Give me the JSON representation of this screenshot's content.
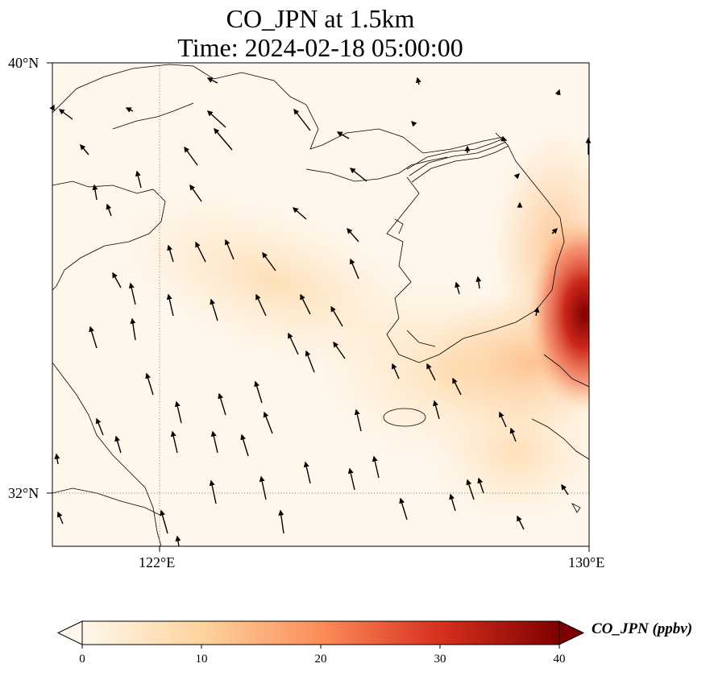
{
  "figure": {
    "title_line1": "CO_JPN at 1.5km",
    "title_line2": "Time: 2024-02-18 05:00:00"
  },
  "axes": {
    "lat_ticks": [
      "40°N",
      "32°N"
    ],
    "lon_ticks": [
      "122°E",
      "130°E"
    ],
    "gridlines": "dotted",
    "extent": {
      "lon_min": 120,
      "lon_max": 130,
      "lat_min": 31,
      "lat_max": 40
    }
  },
  "colorbar": {
    "label": "CO_JPN (ppbv)",
    "ticks": [
      "0",
      "10",
      "20",
      "30",
      "40"
    ],
    "colormap": "OrRd",
    "range": [
      0,
      40
    ],
    "extend": "both"
  },
  "colors": {
    "low": "#fff7ec",
    "mid": "#fdd49e",
    "high": "#d7301f",
    "max": "#7f0000"
  },
  "map_layers": [
    "coastlines",
    "wind-vectors",
    "co-concentration-field"
  ]
}
